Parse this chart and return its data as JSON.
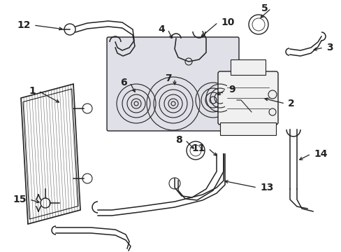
{
  "bg_color": "#ffffff",
  "line_color": "#222222",
  "box_fill": "#e0e0e8",
  "lw": 1.1,
  "fontsize": 9,
  "bold_fontsize": 10
}
